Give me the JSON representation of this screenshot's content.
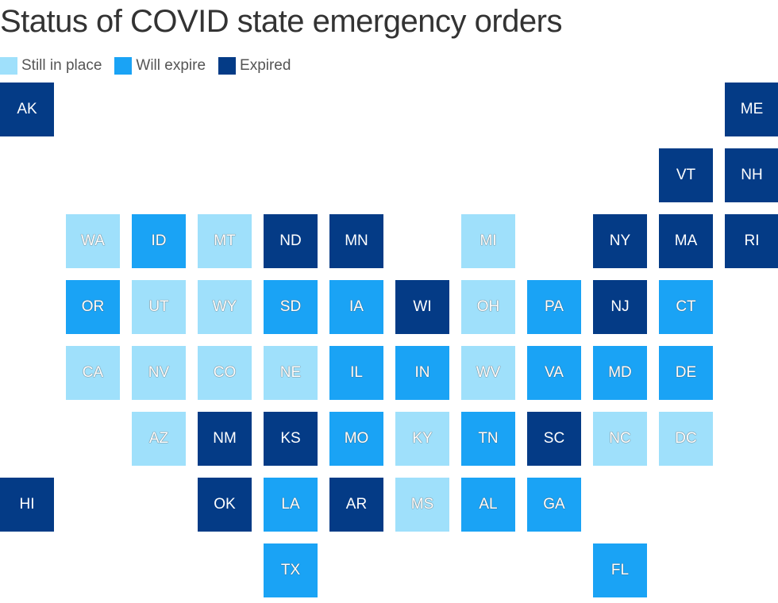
{
  "title": "Status of COVID state emergency orders",
  "colors": {
    "still": "#9fe0fb",
    "will": "#1aa3f5",
    "expired": "#043b86"
  },
  "legend": [
    {
      "key": "still",
      "label": "Still in place"
    },
    {
      "key": "will",
      "label": "Will expire"
    },
    {
      "key": "expired",
      "label": "Expired"
    }
  ],
  "states": [
    {
      "abbr": "AK",
      "status": "expired",
      "row": 0,
      "col": 0
    },
    {
      "abbr": "ME",
      "status": "expired",
      "row": 0,
      "col": 11
    },
    {
      "abbr": "VT",
      "status": "expired",
      "row": 1,
      "col": 10
    },
    {
      "abbr": "NH",
      "status": "expired",
      "row": 1,
      "col": 11
    },
    {
      "abbr": "WA",
      "status": "still",
      "row": 2,
      "col": 1
    },
    {
      "abbr": "ID",
      "status": "will",
      "row": 2,
      "col": 2
    },
    {
      "abbr": "MT",
      "status": "still",
      "row": 2,
      "col": 3
    },
    {
      "abbr": "ND",
      "status": "expired",
      "row": 2,
      "col": 4
    },
    {
      "abbr": "MN",
      "status": "expired",
      "row": 2,
      "col": 5
    },
    {
      "abbr": "MI",
      "status": "still",
      "row": 2,
      "col": 7
    },
    {
      "abbr": "NY",
      "status": "expired",
      "row": 2,
      "col": 9
    },
    {
      "abbr": "MA",
      "status": "expired",
      "row": 2,
      "col": 10
    },
    {
      "abbr": "RI",
      "status": "expired",
      "row": 2,
      "col": 11
    },
    {
      "abbr": "OR",
      "status": "will",
      "row": 3,
      "col": 1
    },
    {
      "abbr": "UT",
      "status": "still",
      "row": 3,
      "col": 2
    },
    {
      "abbr": "WY",
      "status": "still",
      "row": 3,
      "col": 3
    },
    {
      "abbr": "SD",
      "status": "will",
      "row": 3,
      "col": 4
    },
    {
      "abbr": "IA",
      "status": "will",
      "row": 3,
      "col": 5
    },
    {
      "abbr": "WI",
      "status": "expired",
      "row": 3,
      "col": 6
    },
    {
      "abbr": "OH",
      "status": "still",
      "row": 3,
      "col": 7
    },
    {
      "abbr": "PA",
      "status": "will",
      "row": 3,
      "col": 8
    },
    {
      "abbr": "NJ",
      "status": "expired",
      "row": 3,
      "col": 9
    },
    {
      "abbr": "CT",
      "status": "will",
      "row": 3,
      "col": 10
    },
    {
      "abbr": "CA",
      "status": "still",
      "row": 4,
      "col": 1
    },
    {
      "abbr": "NV",
      "status": "still",
      "row": 4,
      "col": 2
    },
    {
      "abbr": "CO",
      "status": "still",
      "row": 4,
      "col": 3
    },
    {
      "abbr": "NE",
      "status": "still",
      "row": 4,
      "col": 4
    },
    {
      "abbr": "IL",
      "status": "will",
      "row": 4,
      "col": 5
    },
    {
      "abbr": "IN",
      "status": "will",
      "row": 4,
      "col": 6
    },
    {
      "abbr": "WV",
      "status": "still",
      "row": 4,
      "col": 7
    },
    {
      "abbr": "VA",
      "status": "will",
      "row": 4,
      "col": 8
    },
    {
      "abbr": "MD",
      "status": "will",
      "row": 4,
      "col": 9
    },
    {
      "abbr": "DE",
      "status": "will",
      "row": 4,
      "col": 10
    },
    {
      "abbr": "AZ",
      "status": "still",
      "row": 5,
      "col": 2
    },
    {
      "abbr": "NM",
      "status": "expired",
      "row": 5,
      "col": 3
    },
    {
      "abbr": "KS",
      "status": "expired",
      "row": 5,
      "col": 4
    },
    {
      "abbr": "MO",
      "status": "will",
      "row": 5,
      "col": 5
    },
    {
      "abbr": "KY",
      "status": "still",
      "row": 5,
      "col": 6
    },
    {
      "abbr": "TN",
      "status": "will",
      "row": 5,
      "col": 7
    },
    {
      "abbr": "SC",
      "status": "expired",
      "row": 5,
      "col": 8
    },
    {
      "abbr": "NC",
      "status": "still",
      "row": 5,
      "col": 9
    },
    {
      "abbr": "DC",
      "status": "still",
      "row": 5,
      "col": 10
    },
    {
      "abbr": "HI",
      "status": "expired",
      "row": 6,
      "col": 0
    },
    {
      "abbr": "OK",
      "status": "expired",
      "row": 6,
      "col": 3
    },
    {
      "abbr": "LA",
      "status": "will",
      "row": 6,
      "col": 4
    },
    {
      "abbr": "AR",
      "status": "expired",
      "row": 6,
      "col": 5
    },
    {
      "abbr": "MS",
      "status": "still",
      "row": 6,
      "col": 6
    },
    {
      "abbr": "AL",
      "status": "will",
      "row": 6,
      "col": 7
    },
    {
      "abbr": "GA",
      "status": "will",
      "row": 6,
      "col": 8
    },
    {
      "abbr": "TX",
      "status": "will",
      "row": 7,
      "col": 4
    },
    {
      "abbr": "FL",
      "status": "will",
      "row": 7,
      "col": 9
    }
  ]
}
